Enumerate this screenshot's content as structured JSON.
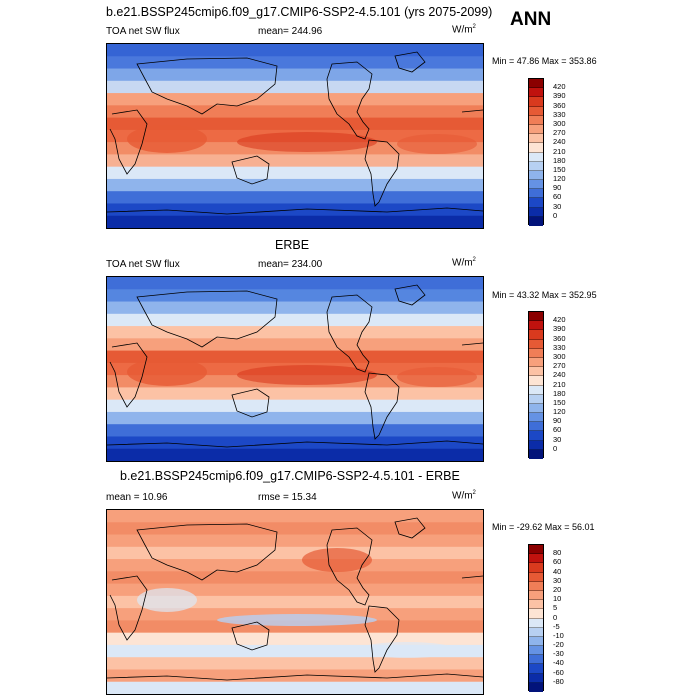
{
  "header": {
    "title": "b.e21.BSSP245cmip6.f09_g17.CMIP6-SSP2-4.5.101 (yrs 2075-2099)",
    "season": "ANN"
  },
  "panels": [
    {
      "id": "model",
      "title": "",
      "left_label": "TOA net SW flux",
      "center_label": "mean= 244.96",
      "units": "W/m",
      "units_sup": "2",
      "minmax": "Min =  47.86 Max = 353.86",
      "colorbar": {
        "levels": [
          "420",
          "390",
          "360",
          "330",
          "300",
          "270",
          "240",
          "210",
          "180",
          "150",
          "120",
          "90",
          "60",
          "30",
          "0"
        ],
        "colors": [
          "#8b0000",
          "#c0120e",
          "#d93a1e",
          "#e65a35",
          "#f07e57",
          "#f7a07c",
          "#fcc2a5",
          "#fde4d4",
          "#dbe8f7",
          "#b7d0f2",
          "#8fb4ec",
          "#6592e4",
          "#3f6ed8",
          "#1c48c6",
          "#0b2ca8",
          "#02137a"
        ]
      }
    },
    {
      "id": "obs",
      "title": "ERBE",
      "left_label": "TOA net SW flux",
      "center_label": "mean= 234.00",
      "units": "W/m",
      "units_sup": "2",
      "minmax": "Min =  43.32 Max = 352.95",
      "colorbar": {
        "levels": [
          "420",
          "390",
          "360",
          "330",
          "300",
          "270",
          "240",
          "210",
          "180",
          "150",
          "120",
          "90",
          "60",
          "30",
          "0"
        ],
        "colors": [
          "#8b0000",
          "#c0120e",
          "#d93a1e",
          "#e65a35",
          "#f07e57",
          "#f7a07c",
          "#fcc2a5",
          "#fde4d4",
          "#dbe8f7",
          "#b7d0f2",
          "#8fb4ec",
          "#6592e4",
          "#3f6ed8",
          "#1c48c6",
          "#0b2ca8",
          "#02137a"
        ]
      }
    },
    {
      "id": "diff",
      "title": "b.e21.BSSP245cmip6.f09_g17.CMIP6-SSP2-4.5.101 - ERBE",
      "left_label": "mean =  10.96",
      "center_label": "rmse =  15.34",
      "units": "W/m",
      "units_sup": "2",
      "minmax": "Min = -29.62 Max =  56.01",
      "colorbar": {
        "levels": [
          "80",
          "60",
          "40",
          "30",
          "20",
          "10",
          "5",
          "0",
          "-5",
          "-10",
          "-20",
          "-30",
          "-40",
          "-60",
          "-80"
        ],
        "colors": [
          "#8b0000",
          "#c0120e",
          "#d93a1e",
          "#e65a35",
          "#f07e57",
          "#f7a07c",
          "#fcc2a5",
          "#fde4d4",
          "#dbe8f7",
          "#b7d0f2",
          "#8fb4ec",
          "#6592e4",
          "#3f6ed8",
          "#1c48c6",
          "#0b2ca8",
          "#02137a"
        ]
      }
    }
  ]
}
